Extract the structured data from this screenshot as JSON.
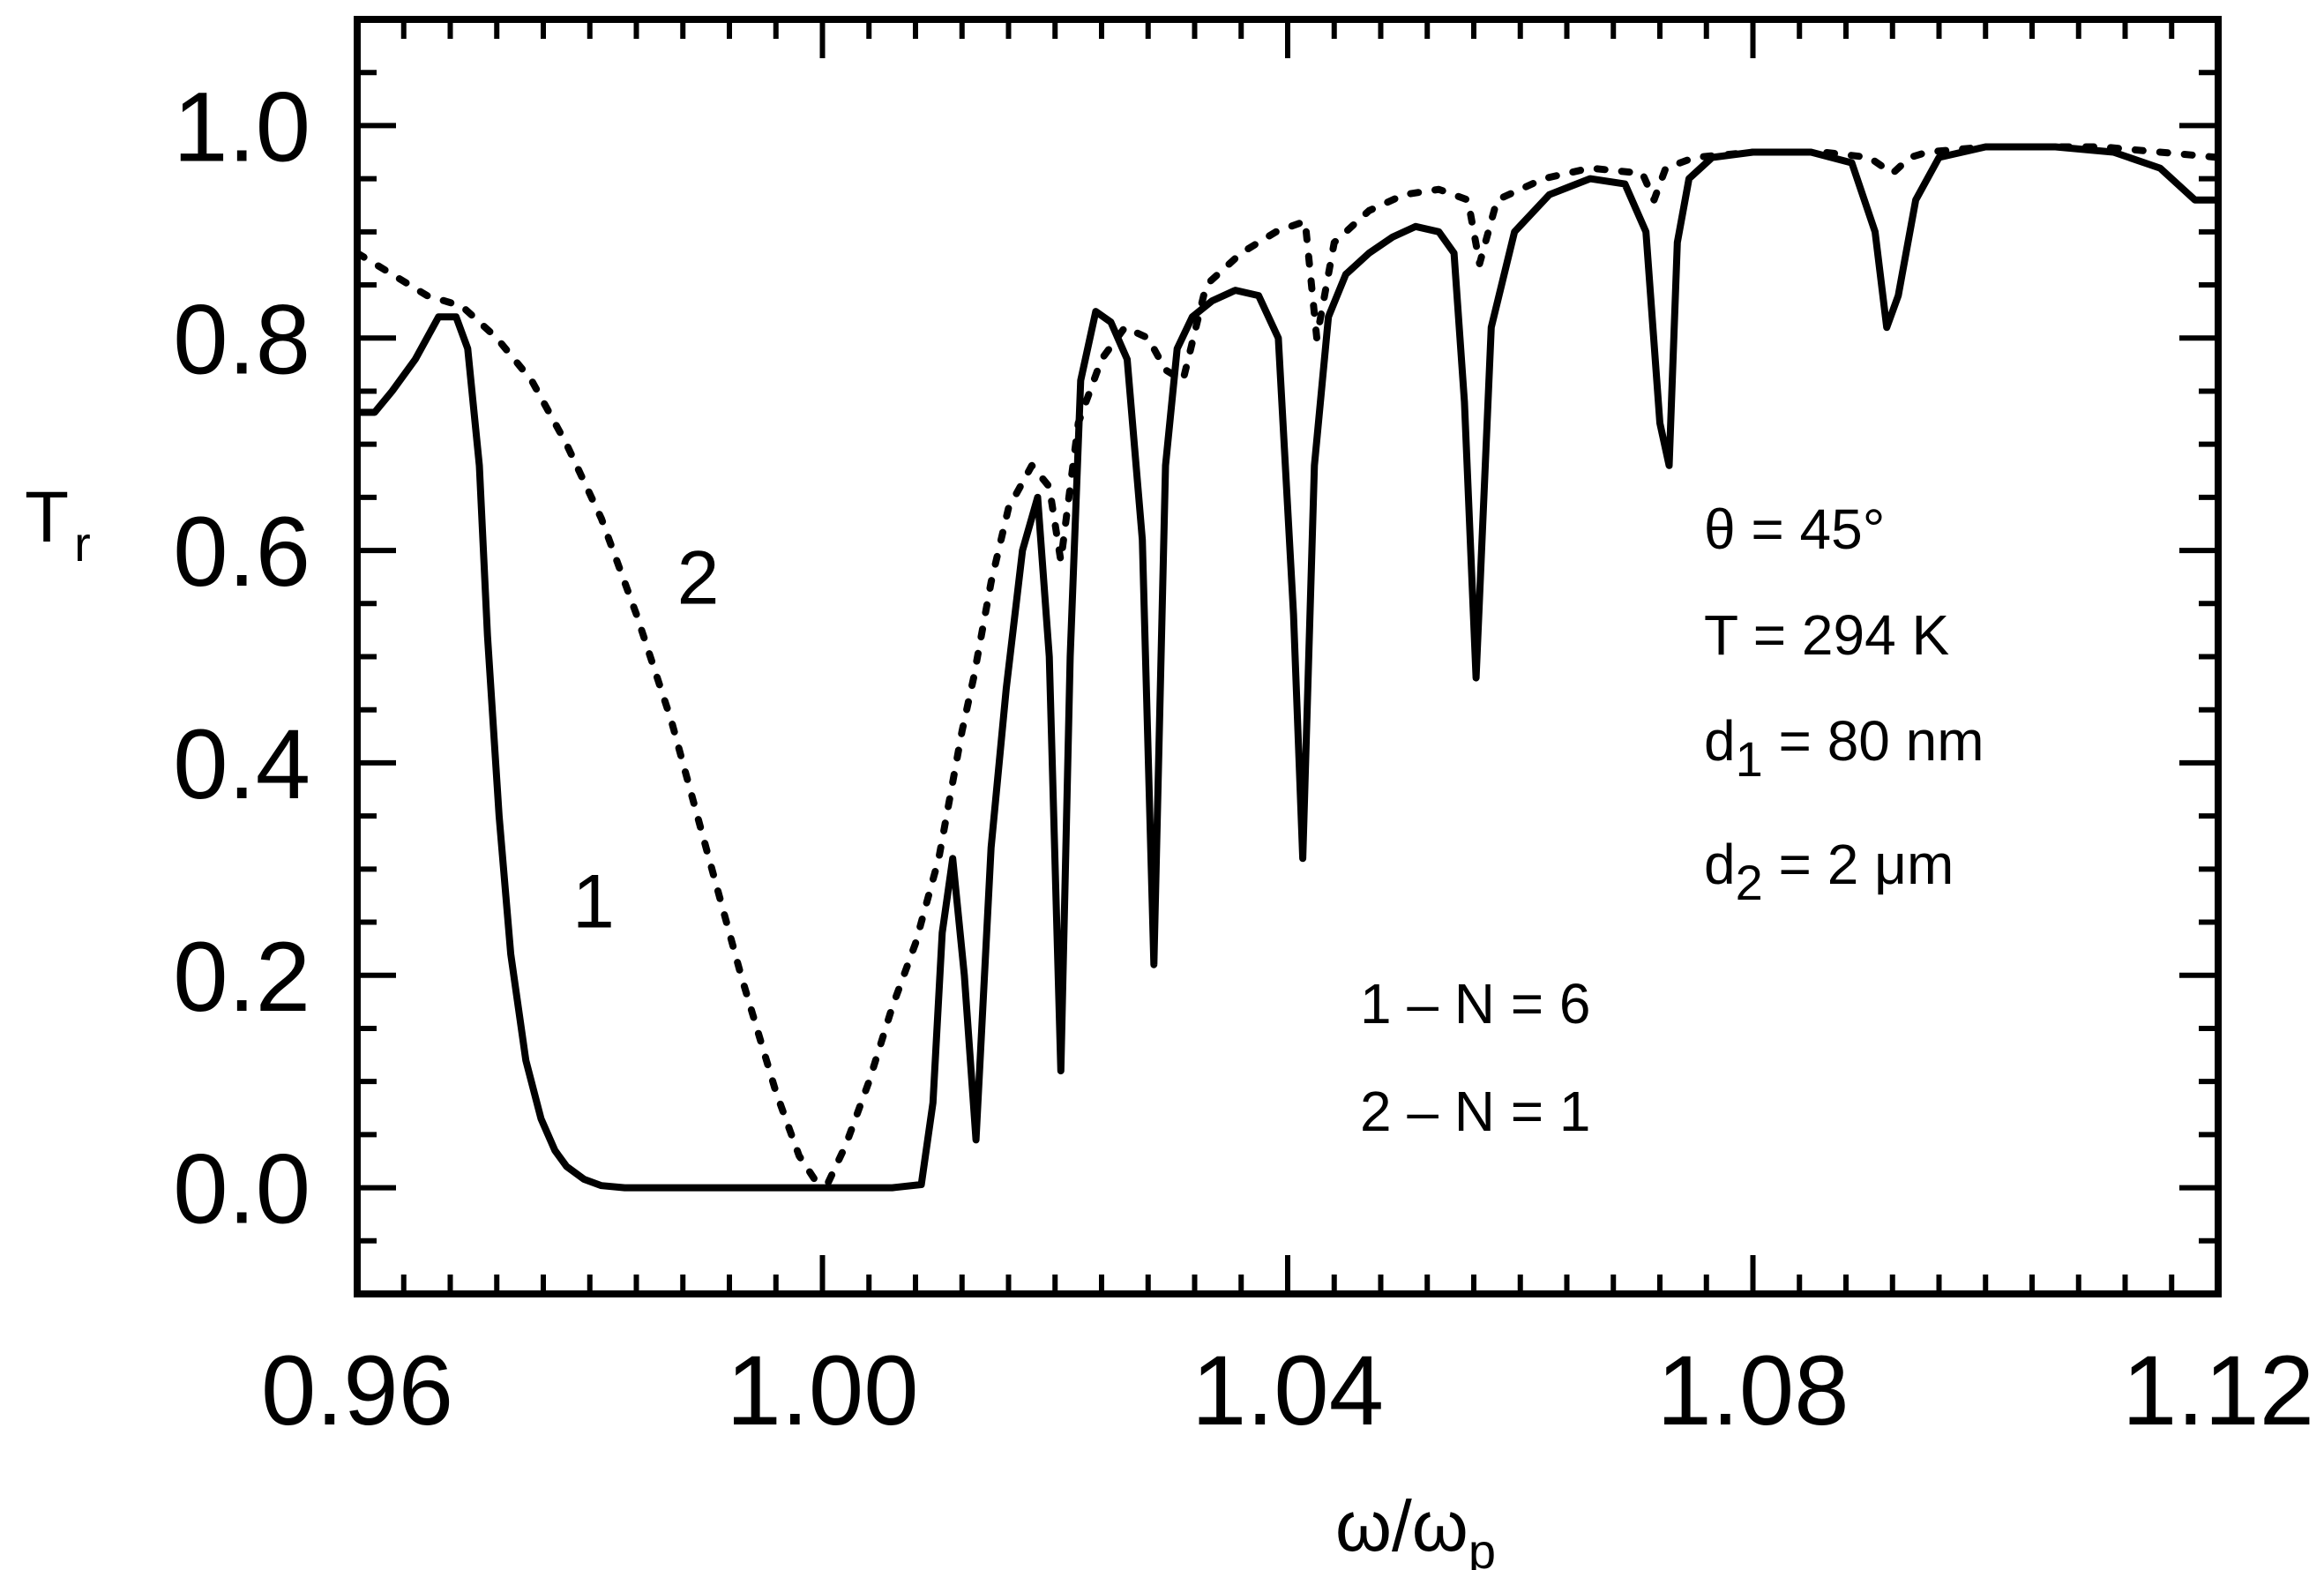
{
  "chart_data": {
    "type": "line",
    "title": "",
    "xlabel": {
      "main": "ω/ω",
      "sub": "p"
    },
    "ylabel": {
      "main": "T",
      "sub": "r"
    },
    "xlim": [
      0.96,
      1.12
    ],
    "ylim": [
      -0.1,
      1.1
    ],
    "x_ticks": [
      0.96,
      1.0,
      1.04,
      1.08,
      1.12
    ],
    "x_tick_labels": [
      "0.96",
      "1.00",
      "1.04",
      "1.08",
      "1.12"
    ],
    "y_ticks": [
      0.0,
      0.2,
      0.4,
      0.6,
      0.8,
      1.0
    ],
    "y_tick_labels": [
      "0.0",
      "0.2",
      "0.4",
      "0.6",
      "0.8",
      "1.0"
    ],
    "x_minor_step": 0.004,
    "y_minor_step": 0.05,
    "grid": false,
    "series": [
      {
        "name": "1",
        "style": "solid",
        "x": [
          0.96,
          0.9615,
          0.963,
          0.965,
          0.967,
          0.9685,
          0.9695,
          0.9705,
          0.9712,
          0.9722,
          0.9732,
          0.9745,
          0.9758,
          0.977,
          0.978,
          0.9795,
          0.981,
          0.983,
          0.986,
          0.99,
          1.0,
          1.006,
          1.0085,
          1.0095,
          1.0103,
          1.0112,
          1.0122,
          1.0132,
          1.0145,
          1.0158,
          1.0172,
          1.0185,
          1.0195,
          1.0205,
          1.0213,
          1.0222,
          1.0235,
          1.0248,
          1.0262,
          1.0275,
          1.0285,
          1.0295,
          1.0305,
          1.0318,
          1.0335,
          1.0355,
          1.0375,
          1.0392,
          1.0405,
          1.0413,
          1.0423,
          1.0435,
          1.045,
          1.047,
          1.049,
          1.051,
          1.053,
          1.0543,
          1.0552,
          1.0562,
          1.0575,
          1.0595,
          1.0625,
          1.066,
          1.069,
          1.0708,
          1.072,
          1.0728,
          1.0735,
          1.0745,
          1.0765,
          1.08,
          1.085,
          1.0885,
          1.0905,
          1.0915,
          1.0925,
          1.094,
          1.096,
          1.1,
          1.106,
          1.111,
          1.115,
          1.118,
          1.12
        ],
        "y": [
          0.73,
          0.73,
          0.75,
          0.78,
          0.82,
          0.82,
          0.79,
          0.68,
          0.52,
          0.35,
          0.22,
          0.12,
          0.065,
          0.035,
          0.02,
          0.008,
          0.002,
          0.0,
          0.0,
          0.0,
          0.0,
          0.0,
          0.003,
          0.08,
          0.24,
          0.31,
          0.2,
          0.045,
          0.32,
          0.47,
          0.6,
          0.65,
          0.5,
          0.11,
          0.5,
          0.76,
          0.825,
          0.815,
          0.78,
          0.61,
          0.21,
          0.68,
          0.79,
          0.82,
          0.835,
          0.845,
          0.84,
          0.8,
          0.54,
          0.31,
          0.68,
          0.82,
          0.86,
          0.88,
          0.895,
          0.905,
          0.9,
          0.88,
          0.74,
          0.48,
          0.81,
          0.9,
          0.935,
          0.95,
          0.945,
          0.9,
          0.72,
          0.68,
          0.89,
          0.95,
          0.97,
          0.975,
          0.975,
          0.965,
          0.9,
          0.81,
          0.84,
          0.93,
          0.97,
          0.98,
          0.98,
          0.975,
          0.96,
          0.93,
          0.93
        ]
      },
      {
        "name": "2",
        "style": "dotted",
        "x": [
          0.96,
          0.963,
          0.966,
          0.969,
          0.972,
          0.975,
          0.978,
          0.981,
          0.984,
          0.987,
          0.99,
          0.993,
          0.996,
          0.998,
          0.9995,
          1.0005,
          1.002,
          1.004,
          1.006,
          1.008,
          1.01,
          1.012,
          1.013,
          1.0145,
          1.016,
          1.018,
          1.0195,
          1.0205,
          1.022,
          1.024,
          1.026,
          1.028,
          1.0295,
          1.031,
          1.033,
          1.036,
          1.039,
          1.0415,
          1.0425,
          1.044,
          1.047,
          1.05,
          1.053,
          1.0555,
          1.0565,
          1.058,
          1.062,
          1.066,
          1.0705,
          1.0715,
          1.0725,
          1.075,
          1.08,
          1.086,
          1.09,
          1.092,
          1.0935,
          1.095,
          1.1,
          1.11,
          1.12
        ],
        "y": [
          0.88,
          0.86,
          0.84,
          0.83,
          0.8,
          0.76,
          0.7,
          0.63,
          0.54,
          0.44,
          0.32,
          0.2,
          0.09,
          0.03,
          0.005,
          0.005,
          0.04,
          0.1,
          0.17,
          0.23,
          0.31,
          0.43,
          0.48,
          0.57,
          0.64,
          0.68,
          0.66,
          0.59,
          0.72,
          0.78,
          0.81,
          0.8,
          0.77,
          0.76,
          0.85,
          0.88,
          0.9,
          0.91,
          0.8,
          0.89,
          0.92,
          0.935,
          0.94,
          0.93,
          0.87,
          0.93,
          0.95,
          0.96,
          0.955,
          0.93,
          0.96,
          0.97,
          0.975,
          0.975,
          0.97,
          0.955,
          0.97,
          0.975,
          0.98,
          0.98,
          0.97
        ]
      }
    ],
    "curve_labels": [
      {
        "text": "1",
        "x": 0.9785,
        "y": 0.245
      },
      {
        "text": "2",
        "x": 0.9875,
        "y": 0.55
      }
    ],
    "annotations": {
      "theta": "θ = 45°",
      "temperature": "T = 294 K",
      "d1_prefix": "d",
      "d1_sub": "1",
      "d1_value": " = 80 nm",
      "d2_prefix": "d",
      "d2_sub": "2",
      "d2_value": " = 2 μm",
      "legend_1": "1 – N = 6",
      "legend_2": "2 – N = 1"
    }
  }
}
